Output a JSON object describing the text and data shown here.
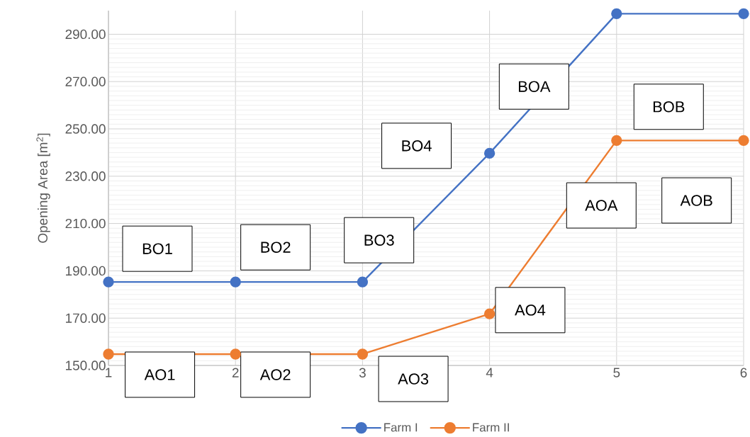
{
  "chart_data": {
    "type": "line",
    "ylabel": "Opening Area [m$^{2}$]",
    "x": [
      1,
      2,
      3,
      4,
      5,
      6
    ],
    "series": [
      {
        "name": "Farm I",
        "color": "#4472c4",
        "values": [
          185.3,
          185.3,
          185.3,
          239.7,
          298.7,
          298.7
        ]
      },
      {
        "name": "Farm II",
        "color": "#ed7d31",
        "values": [
          154.8,
          154.8,
          154.8,
          171.8,
          245.1,
          245.1
        ]
      }
    ],
    "xlim": [
      1,
      6
    ],
    "xticks": [
      1,
      2,
      3,
      4,
      5,
      6
    ],
    "ylim": [
      150,
      300
    ],
    "yticks": [
      {
        "value": 150,
        "label": "150.00"
      },
      {
        "value": 170,
        "label": "170.00"
      },
      {
        "value": 190,
        "label": "190.00"
      },
      {
        "value": 210,
        "label": "210.00"
      },
      {
        "value": 230,
        "label": "230.00"
      },
      {
        "value": 250,
        "label": "250.00"
      },
      {
        "value": 270,
        "label": "270.00"
      },
      {
        "value": 290,
        "label": "290.00"
      }
    ],
    "annotations": [
      "BO1",
      "BO2",
      "BO3",
      "BO4",
      "BOA",
      "BOB",
      "AO1",
      "AO2",
      "AO3",
      "AO4",
      "AOA",
      "AOB"
    ],
    "grid": true,
    "legend": "bottom",
    "marker": "circle",
    "line_style": "solid"
  }
}
